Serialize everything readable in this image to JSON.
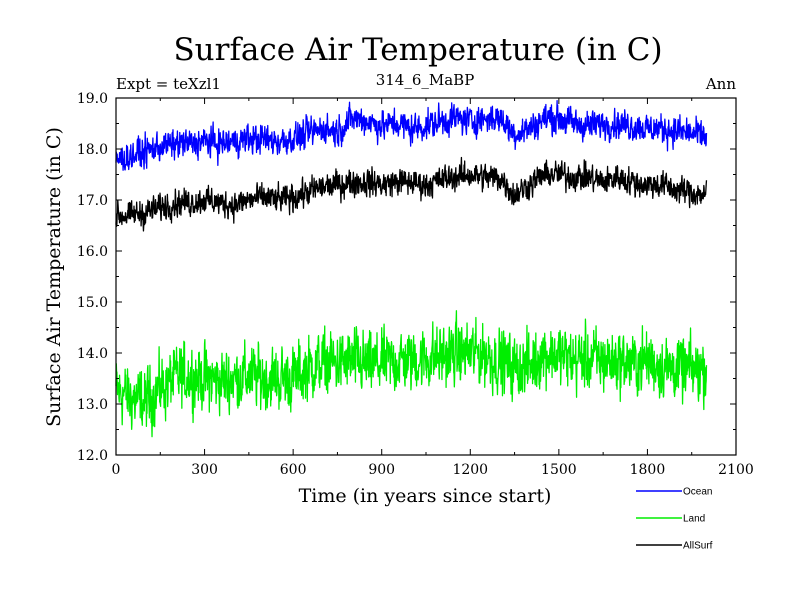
{
  "chart_data": {
    "type": "line",
    "title": "Surface Air Temperature (in C)",
    "left_label": "Expt = teXzl1",
    "center_label": "314_6_MaBP",
    "right_label": "Ann",
    "xlabel": "Time (in years since start)",
    "ylabel": "Surface Air Temperature (in C)",
    "xlim": [
      0,
      2100
    ],
    "ylim": [
      12.0,
      19.0
    ],
    "xticks": [
      "0",
      "300",
      "600",
      "900",
      "1200",
      "1500",
      "1800",
      "2100"
    ],
    "yticks": [
      "12.0",
      "13.0",
      "14.0",
      "15.0",
      "16.0",
      "17.0",
      "18.0",
      "19.0"
    ],
    "x_start": 0,
    "x_step": 50,
    "series": [
      {
        "name": "Ocean",
        "color": "#0000ff",
        "noise": 0.13,
        "values": [
          17.8,
          17.85,
          17.95,
          18.05,
          18.1,
          18.1,
          18.15,
          18.1,
          18.15,
          18.2,
          18.2,
          18.15,
          18.2,
          18.3,
          18.4,
          18.35,
          18.6,
          18.55,
          18.45,
          18.5,
          18.4,
          18.45,
          18.55,
          18.6,
          18.55,
          18.6,
          18.6,
          18.3,
          18.4,
          18.6,
          18.6,
          18.5,
          18.45,
          18.5,
          18.5,
          18.45,
          18.4,
          18.4,
          18.35,
          18.3,
          18.25
        ]
      },
      {
        "name": "Land",
        "color": "#00ee00",
        "noise": 0.28,
        "values": [
          13.3,
          13.1,
          13.05,
          13.3,
          13.5,
          13.55,
          13.5,
          13.45,
          13.5,
          13.55,
          13.5,
          13.5,
          13.5,
          13.7,
          13.8,
          13.8,
          13.85,
          13.75,
          13.8,
          13.85,
          13.85,
          13.9,
          13.95,
          14.0,
          14.0,
          13.95,
          13.85,
          13.7,
          13.75,
          14.0,
          13.95,
          13.85,
          13.9,
          13.85,
          13.85,
          13.8,
          13.85,
          13.75,
          13.7,
          13.65,
          13.7
        ]
      },
      {
        "name": "AllSurf",
        "color": "#000000",
        "noise": 0.12,
        "values": [
          16.7,
          16.7,
          16.75,
          16.85,
          16.95,
          16.95,
          17.0,
          16.95,
          16.9,
          17.0,
          17.05,
          17.0,
          17.05,
          17.15,
          17.25,
          17.3,
          17.35,
          17.35,
          17.3,
          17.35,
          17.35,
          17.3,
          17.4,
          17.45,
          17.5,
          17.45,
          17.45,
          17.1,
          17.3,
          17.5,
          17.5,
          17.45,
          17.45,
          17.35,
          17.45,
          17.35,
          17.3,
          17.3,
          17.2,
          17.15,
          17.1
        ]
      }
    ],
    "legend": [
      "Ocean",
      "Land",
      "AllSurf"
    ]
  }
}
